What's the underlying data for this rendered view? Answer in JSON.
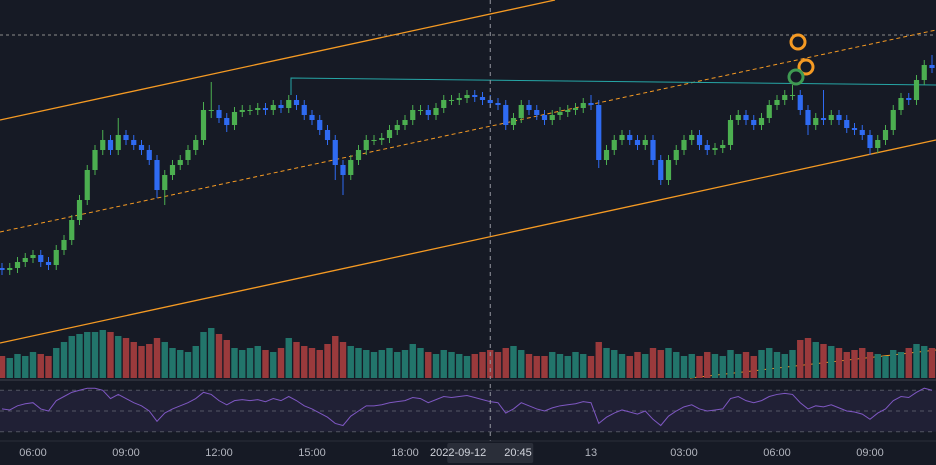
{
  "chart_data": {
    "type": "candlestick",
    "categories": [
      null,
      null,
      null,
      null,
      "06:00",
      null,
      null,
      null,
      null,
      null,
      null,
      null,
      null,
      null,
      null,
      null,
      "09:00",
      null,
      null,
      null,
      null,
      null,
      null,
      null,
      null,
      null,
      null,
      null,
      "12:00",
      null,
      null,
      null,
      null,
      null,
      null,
      null,
      null,
      null,
      null,
      null,
      "15:00",
      null,
      null,
      null,
      null,
      null,
      null,
      null,
      null,
      null,
      null,
      null,
      "18:00",
      null,
      null,
      null,
      null,
      null,
      null,
      null,
      null,
      null,
      null,
      null,
      null,
      null,
      null,
      null,
      null,
      null,
      null,
      null,
      null,
      null,
      null,
      null,
      "13",
      null,
      null,
      null,
      null,
      null,
      null,
      null,
      null,
      null,
      null,
      null,
      "03:00",
      null,
      null,
      null,
      null,
      null,
      null,
      null,
      null,
      null,
      null,
      null,
      "06:00",
      null,
      null,
      null,
      null,
      null,
      null,
      null,
      null,
      null,
      null,
      null,
      "09:00",
      null,
      null,
      null,
      null,
      null,
      null,
      null,
      null
    ],
    "crosshair": {
      "index": 63,
      "date": "2022-09-12",
      "time": "20:45"
    },
    "open": [
      62,
      60,
      62,
      68,
      72,
      75,
      68,
      65,
      80,
      90,
      110,
      130,
      160,
      180,
      190,
      180,
      195,
      190,
      185,
      180,
      170,
      140,
      155,
      165,
      170,
      180,
      190,
      220,
      220,
      212,
      205,
      218,
      220,
      220,
      222,
      220,
      225,
      222,
      230,
      225,
      215,
      210,
      200,
      190,
      165,
      155,
      170,
      180,
      190,
      190,
      192,
      200,
      205,
      210,
      220,
      220,
      215,
      222,
      230,
      230,
      232,
      235,
      233,
      230,
      227,
      225,
      205,
      212,
      225,
      220,
      215,
      210,
      215,
      218,
      220,
      222,
      227,
      225,
      170,
      180,
      190,
      195,
      190,
      185,
      190,
      170,
      150,
      170,
      180,
      190,
      195,
      185,
      180,
      182,
      185,
      210,
      215,
      210,
      205,
      212,
      225,
      230,
      235,
      235,
      220,
      205,
      212,
      210,
      215,
      210,
      202,
      200,
      195,
      182,
      190,
      200,
      220,
      232,
      230,
      250,
      265
    ],
    "high": [
      67,
      67,
      73,
      77,
      80,
      80,
      73,
      85,
      95,
      115,
      135,
      165,
      185,
      200,
      195,
      212,
      200,
      195,
      190,
      185,
      175,
      160,
      170,
      175,
      185,
      195,
      228,
      248,
      225,
      217,
      223,
      225,
      225,
      227,
      227,
      230,
      230,
      235,
      235,
      230,
      220,
      215,
      205,
      195,
      170,
      175,
      185,
      195,
      195,
      197,
      205,
      210,
      215,
      225,
      225,
      225,
      227,
      235,
      235,
      237,
      240,
      240,
      238,
      235,
      232,
      230,
      217,
      230,
      230,
      225,
      220,
      220,
      223,
      225,
      227,
      232,
      235,
      230,
      185,
      195,
      200,
      200,
      195,
      195,
      195,
      175,
      175,
      185,
      195,
      200,
      200,
      190,
      187,
      190,
      215,
      220,
      220,
      215,
      217,
      230,
      235,
      240,
      245,
      240,
      225,
      217,
      240,
      220,
      220,
      215,
      207,
      205,
      200,
      195,
      205,
      225,
      237,
      237,
      255,
      270,
      275
    ],
    "low": [
      55,
      55,
      57,
      63,
      67,
      63,
      60,
      60,
      75,
      85,
      105,
      125,
      155,
      175,
      175,
      175,
      185,
      180,
      175,
      165,
      132,
      125,
      150,
      160,
      165,
      175,
      185,
      212,
      207,
      198,
      200,
      213,
      215,
      215,
      215,
      215,
      217,
      217,
      220,
      210,
      205,
      195,
      185,
      150,
      135,
      150,
      165,
      175,
      185,
      185,
      187,
      195,
      200,
      205,
      215,
      210,
      210,
      217,
      225,
      225,
      227,
      228,
      225,
      222,
      220,
      200,
      200,
      207,
      215,
      210,
      205,
      205,
      210,
      213,
      215,
      217,
      220,
      162,
      165,
      175,
      185,
      185,
      180,
      180,
      165,
      145,
      145,
      165,
      175,
      185,
      180,
      175,
      175,
      177,
      180,
      205,
      205,
      200,
      200,
      207,
      220,
      225,
      230,
      215,
      195,
      200,
      205,
      205,
      205,
      197,
      195,
      190,
      175,
      177,
      185,
      195,
      215,
      225,
      225,
      245,
      257
    ],
    "close": [
      60,
      62,
      68,
      72,
      75,
      68,
      65,
      80,
      90,
      110,
      130,
      160,
      180,
      190,
      180,
      195,
      190,
      185,
      180,
      170,
      140,
      155,
      165,
      170,
      180,
      190,
      220,
      220,
      212,
      205,
      218,
      220,
      220,
      222,
      220,
      225,
      222,
      230,
      225,
      215,
      210,
      200,
      190,
      165,
      155,
      170,
      180,
      190,
      190,
      192,
      200,
      205,
      210,
      220,
      220,
      215,
      222,
      230,
      230,
      232,
      235,
      233,
      230,
      227,
      225,
      205,
      212,
      225,
      220,
      215,
      210,
      215,
      218,
      220,
      222,
      227,
      225,
      170,
      180,
      190,
      195,
      190,
      185,
      190,
      170,
      150,
      170,
      180,
      190,
      195,
      185,
      180,
      182,
      185,
      210,
      215,
      210,
      205,
      212,
      225,
      230,
      235,
      235,
      220,
      205,
      212,
      210,
      215,
      210,
      202,
      200,
      195,
      182,
      190,
      200,
      220,
      232,
      230,
      250,
      265,
      262
    ],
    "volume": [
      22,
      20,
      24,
      22,
      26,
      24,
      22,
      30,
      36,
      42,
      44,
      46,
      46,
      48,
      46,
      42,
      40,
      36,
      32,
      34,
      40,
      36,
      30,
      28,
      26,
      32,
      46,
      50,
      44,
      38,
      30,
      28,
      30,
      32,
      28,
      26,
      30,
      40,
      36,
      32,
      30,
      28,
      34,
      42,
      36,
      32,
      30,
      28,
      26,
      28,
      30,
      26,
      28,
      34,
      30,
      26,
      24,
      28,
      26,
      24,
      22,
      24,
      26,
      28,
      26,
      30,
      32,
      28,
      24,
      22,
      22,
      26,
      24,
      22,
      26,
      24,
      22,
      36,
      30,
      28,
      24,
      22,
      26,
      24,
      30,
      28,
      30,
      26,
      22,
      24,
      22,
      26,
      24,
      22,
      28,
      24,
      26,
      22,
      28,
      30,
      26,
      24,
      28,
      38,
      40,
      36,
      34,
      32,
      30,
      26,
      28,
      30,
      26,
      24,
      22,
      28,
      26,
      30,
      34,
      32,
      30
    ],
    "rsi": [
      52,
      51,
      55,
      57,
      58,
      52,
      50,
      60,
      64,
      68,
      70,
      72,
      72,
      70,
      62,
      66,
      62,
      58,
      55,
      50,
      40,
      48,
      52,
      55,
      58,
      62,
      68,
      66,
      60,
      56,
      60,
      61,
      60,
      61,
      59,
      62,
      60,
      64,
      60,
      55,
      52,
      48,
      44,
      38,
      36,
      45,
      50,
      55,
      55,
      56,
      58,
      59,
      60,
      63,
      62,
      58,
      61,
      64,
      63,
      64,
      65,
      63,
      61,
      59,
      58,
      48,
      52,
      58,
      55,
      52,
      50,
      53,
      55,
      56,
      57,
      59,
      58,
      38,
      44,
      48,
      51,
      49,
      47,
      50,
      42,
      36,
      45,
      50,
      54,
      56,
      52,
      50,
      51,
      52,
      62,
      64,
      60,
      58,
      60,
      64,
      66,
      67,
      66,
      58,
      52,
      55,
      54,
      56,
      53,
      50,
      49,
      47,
      42,
      48,
      52,
      60,
      64,
      63,
      68,
      72,
      70
    ],
    "ylim": [
      -50,
      330
    ],
    "volume_ylim": [
      0,
      150
    ],
    "rsi_ylim": [
      22,
      78
    ],
    "rsi_bands": [
      30,
      50,
      70
    ],
    "up_color": "#4caf50",
    "down_color": "#2f6bf2",
    "volume_up_color": "#22756b",
    "volume_down_color": "#9a3a3c",
    "rsi_color": "#7e57c2"
  }
}
